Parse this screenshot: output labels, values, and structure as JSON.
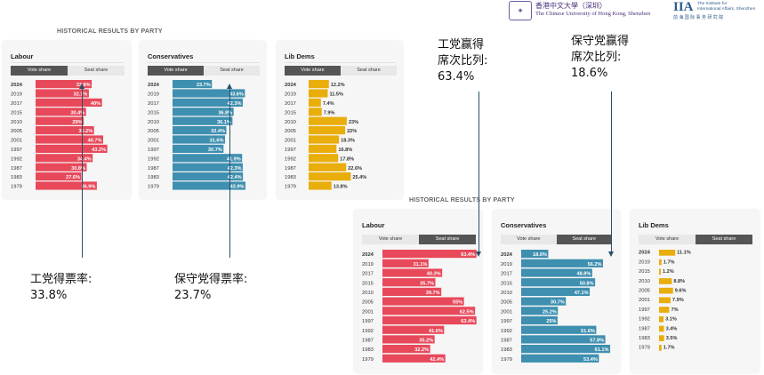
{
  "logos": {
    "cuhk_zh": "香港中文大學（深圳）",
    "cuhk_en": "The Chinese University of Hong Kong, Shenzhen",
    "iia_mark": "IIA",
    "iia_en_line1": "The Institute for",
    "iia_en_line2": "International Affairs, Shenzhen",
    "iia_zh": "前 海 国 际 事 务 研 究 院"
  },
  "section_title_top": "HISTORICAL RESULTS BY PARTY",
  "section_title_bottom": "HISTORICAL RESULTS BY PARTY",
  "tabs": {
    "vote": "Vote share",
    "seat": "Seat share"
  },
  "annotations": {
    "labour_seat": [
      "工党赢得",
      "席次比列:",
      "63.4%"
    ],
    "con_seat": [
      "保守党赢得",
      "席次比列:",
      "18.6%"
    ],
    "labour_vote": [
      "工党得票率:",
      "33.8%"
    ],
    "con_vote": [
      "保守党得票率:",
      "23.7%"
    ]
  },
  "colors": {
    "labour": "#e8495a",
    "conservatives": "#3e8fb0",
    "libdems": "#e9ad0c",
    "active_tab": "#555555"
  },
  "chart_data": [
    {
      "type": "bar",
      "title": "Labour",
      "active_tab": "Vote share",
      "categories": [
        "2024",
        "2019",
        "2017",
        "2015",
        "2010",
        "2005",
        "2001",
        "1997",
        "1992",
        "1987",
        "1983",
        "1979"
      ],
      "values": [
        33.8,
        32.1,
        40,
        30.4,
        29,
        35.2,
        40.7,
        43.2,
        34.4,
        30.8,
        27.6,
        36.9
      ],
      "labels": [
        "33.8%",
        "32.1%",
        "40%",
        "30.4%",
        "29%",
        "35.2%",
        "40.7%",
        "43.2%",
        "34.4%",
        "30.8%",
        "27.6%",
        "36.9%"
      ],
      "color": "#e8495a",
      "xlim": [
        0,
        45
      ]
    },
    {
      "type": "bar",
      "title": "Conservatives",
      "active_tab": "Vote share",
      "categories": [
        "2024",
        "2019",
        "2017",
        "2015",
        "2010",
        "2005",
        "2001",
        "1997",
        "1992",
        "1987",
        "1983",
        "1979"
      ],
      "values": [
        23.7,
        43.6,
        42.3,
        36.8,
        36.1,
        32.4,
        31.6,
        30.7,
        41.9,
        42.3,
        42.4,
        43.9
      ],
      "labels": [
        "23.7%",
        "43.6%",
        "42.3%",
        "36.8%",
        "36.1%",
        "32.4%",
        "31.6%",
        "30.7%",
        "41.9%",
        "42.3%",
        "42.4%",
        "43.9%"
      ],
      "color": "#3e8fb0",
      "xlim": [
        0,
        45
      ]
    },
    {
      "type": "bar",
      "title": "Lib Dems",
      "active_tab": "Vote share",
      "categories": [
        "2024",
        "2019",
        "2017",
        "2015",
        "2010",
        "2005",
        "2001",
        "1997",
        "1992",
        "1987",
        "1983",
        "1979"
      ],
      "values": [
        12.2,
        11.5,
        7.4,
        7.9,
        23,
        22,
        18.3,
        16.8,
        17.8,
        22.6,
        25.4,
        13.8
      ],
      "labels": [
        "12.2%",
        "11.5%",
        "7.4%",
        "7.9%",
        "23%",
        "22%",
        "18.3%",
        "16.8%",
        "17.8%",
        "22.6%",
        "25.4%",
        "13.8%"
      ],
      "color": "#e9ad0c",
      "xlim": [
        0,
        45
      ]
    },
    {
      "type": "bar",
      "title": "Labour",
      "active_tab": "Seat share",
      "categories": [
        "2024",
        "2019",
        "2017",
        "2015",
        "2010",
        "2005",
        "2001",
        "1997",
        "1992",
        "1987",
        "1983",
        "1979"
      ],
      "values": [
        63.4,
        31.1,
        40.3,
        35.7,
        39.7,
        55,
        62.5,
        63.4,
        41.6,
        35.2,
        32.2,
        42.4
      ],
      "labels": [
        "63.4%",
        "31.1%",
        "40.3%",
        "35.7%",
        "39.7%",
        "55%",
        "62.5%",
        "63.4%",
        "41.6%",
        "35.2%",
        "32.2%",
        "42.4%"
      ],
      "color": "#e8495a",
      "xlim": [
        0,
        66
      ]
    },
    {
      "type": "bar",
      "title": "Conservatives",
      "active_tab": "Seat share",
      "categories": [
        "2024",
        "2019",
        "2017",
        "2015",
        "2010",
        "2005",
        "2001",
        "1997",
        "1992",
        "1987",
        "1983",
        "1979"
      ],
      "values": [
        18.6,
        56.2,
        48.8,
        50.8,
        47.1,
        30.7,
        25.2,
        25,
        51.6,
        57.8,
        61.1,
        53.4
      ],
      "labels": [
        "18.6%",
        "56.2%",
        "48.8%",
        "50.8%",
        "47.1%",
        "30.7%",
        "25.2%",
        "25%",
        "51.6%",
        "57.8%",
        "61.1%",
        "53.4%"
      ],
      "color": "#3e8fb0",
      "xlim": [
        0,
        66
      ]
    },
    {
      "type": "bar",
      "title": "Lib Dems",
      "active_tab": "Seat share",
      "categories": [
        "2024",
        "2019",
        "2015",
        "2010",
        "2005",
        "2001",
        "1997",
        "1992",
        "1987",
        "1983",
        "1979"
      ],
      "values": [
        11.1,
        1.7,
        1.2,
        8.8,
        9.6,
        7.9,
        7,
        3.1,
        3.4,
        3.5,
        1.7
      ],
      "labels": [
        "11.1%",
        "1.7%",
        "1.2%",
        "8.8%",
        "9.6%",
        "7.9%",
        "7%",
        "3.1%",
        "3.4%",
        "3.5%",
        "1.7%"
      ],
      "color": "#e9ad0c",
      "xlim": [
        0,
        66
      ]
    }
  ]
}
